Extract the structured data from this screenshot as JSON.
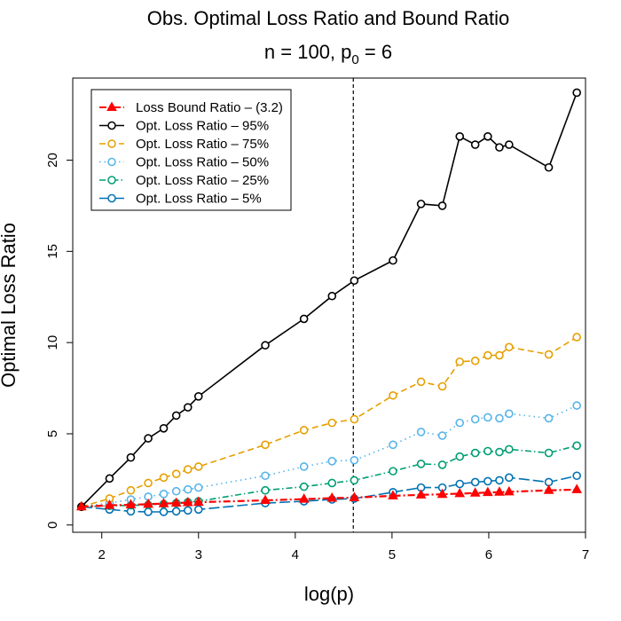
{
  "chart_data": {
    "type": "line",
    "title": "Obs. Optimal Loss Ratio and Bound Ratio",
    "subtitle": {
      "prefix": "n = 100, p",
      "sub": "0",
      "suffix": " = 6"
    },
    "xlabel": "log(p)",
    "ylabel": "Optimal Loss Ratio",
    "xlim": [
      1.7,
      7.0
    ],
    "ylim": [
      -0.4,
      24.5
    ],
    "xticks": [
      2,
      3,
      4,
      5,
      6,
      7
    ],
    "yticks": [
      0,
      5,
      10,
      15,
      20
    ],
    "vline": 4.6,
    "grid": false,
    "legend_position": "top-left",
    "x": [
      1.79,
      2.08,
      2.3,
      2.48,
      2.64,
      2.77,
      2.89,
      3.0,
      3.69,
      4.09,
      4.38,
      4.61,
      5.01,
      5.3,
      5.52,
      5.7,
      5.86,
      5.99,
      6.11,
      6.21,
      6.62,
      6.91
    ],
    "series": [
      {
        "name": "Loss Bound Ratio – (3.2)",
        "color": "#ff0000",
        "dash": "8,3,2,3",
        "marker": "triangle",
        "values": [
          1.0,
          1.08,
          1.11,
          1.14,
          1.17,
          1.2,
          1.23,
          1.25,
          1.35,
          1.42,
          1.47,
          1.5,
          1.6,
          1.65,
          1.68,
          1.72,
          1.75,
          1.78,
          1.8,
          1.82,
          1.9,
          1.94
        ]
      },
      {
        "name": "Opt. Loss Ratio – 95%",
        "color": "#000000",
        "dash": "",
        "marker": "circle",
        "values": [
          1.0,
          2.55,
          3.7,
          4.75,
          5.3,
          6.0,
          6.45,
          7.05,
          9.85,
          11.3,
          12.55,
          13.4,
          14.5,
          17.6,
          17.5,
          21.3,
          20.85,
          21.3,
          20.7,
          20.85,
          19.6,
          23.7
        ]
      },
      {
        "name": "Opt. Loss Ratio – 75%",
        "color": "#e69f00",
        "dash": "7,4",
        "marker": "circle",
        "values": [
          1.0,
          1.45,
          1.9,
          2.3,
          2.6,
          2.8,
          3.05,
          3.2,
          4.4,
          5.2,
          5.6,
          5.8,
          7.1,
          7.85,
          7.6,
          8.95,
          9.0,
          9.3,
          9.3,
          9.75,
          9.35,
          10.3
        ]
      },
      {
        "name": "Opt. Loss Ratio – 50%",
        "color": "#56b4e9",
        "dash": "1.5,4",
        "marker": "circle",
        "values": [
          1.0,
          1.2,
          1.4,
          1.55,
          1.7,
          1.85,
          1.95,
          2.05,
          2.7,
          3.2,
          3.5,
          3.55,
          4.4,
          5.1,
          4.9,
          5.6,
          5.8,
          5.9,
          5.85,
          6.1,
          5.85,
          6.55
        ]
      },
      {
        "name": "Opt. Loss Ratio – 25%",
        "color": "#009e73",
        "dash": "7,3,1.5,3",
        "marker": "circle",
        "values": [
          1.0,
          1.05,
          1.08,
          1.1,
          1.15,
          1.2,
          1.25,
          1.3,
          1.9,
          2.1,
          2.3,
          2.45,
          2.95,
          3.35,
          3.3,
          3.75,
          3.95,
          4.05,
          4.0,
          4.15,
          3.95,
          4.35
        ]
      },
      {
        "name": "Opt. Loss Ratio – 5%",
        "color": "#0072b2",
        "dash": "12,4",
        "marker": "circle",
        "values": [
          1.0,
          0.85,
          0.75,
          0.72,
          0.72,
          0.75,
          0.8,
          0.85,
          1.2,
          1.3,
          1.4,
          1.45,
          1.8,
          2.05,
          2.05,
          2.25,
          2.35,
          2.4,
          2.45,
          2.6,
          2.35,
          2.7
        ]
      }
    ]
  }
}
